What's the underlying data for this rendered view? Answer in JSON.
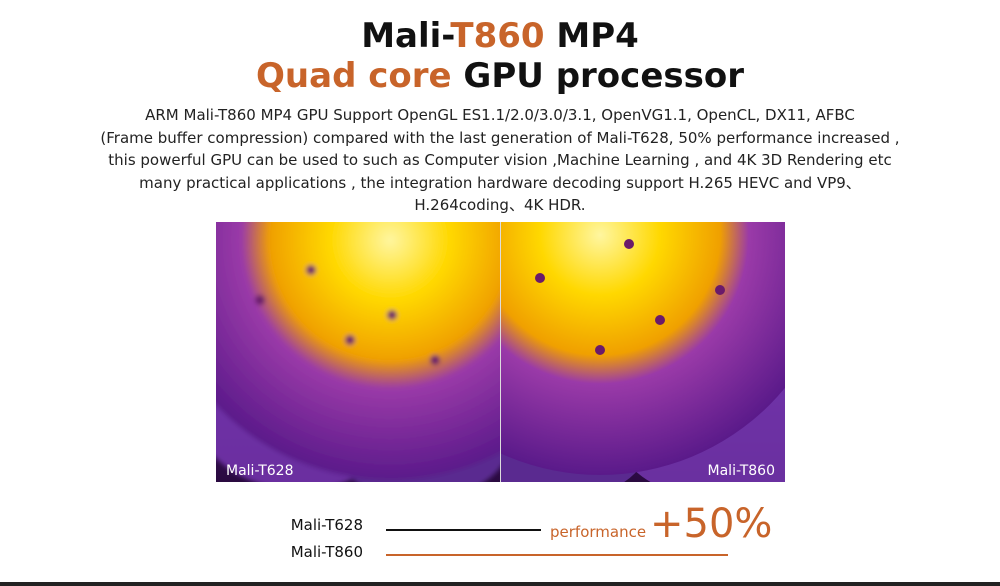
{
  "header": {
    "title_line1": [
      "Mali-",
      "T860",
      " MP4"
    ],
    "title_line2": [
      "Quad core",
      " GPU processor"
    ]
  },
  "description": [
    "ARM Mali-T860 MP4 GPU Support OpenGL ES1.1/2.0/3.0/3.1, OpenVG1.1, OpenCL, DX11, AFBC",
    "(Frame buffer compression) compared with the last generation of Mali-T628, 50% performance increased ,",
    "this powerful GPU can be used to such as Computer vision ,Machine Learning , and 4K 3D Rendering etc",
    "many practical applications , the integration hardware decoding support H.265 HEVC and VP9、",
    "H.264coding、4K HDR."
  ],
  "image": {
    "left_label": "Mali-T628",
    "right_label": "Mali-T860"
  },
  "comparison": {
    "rows": [
      "Mali-T628",
      "Mali-T860"
    ],
    "caption": "performance",
    "gain": "+50%"
  }
}
